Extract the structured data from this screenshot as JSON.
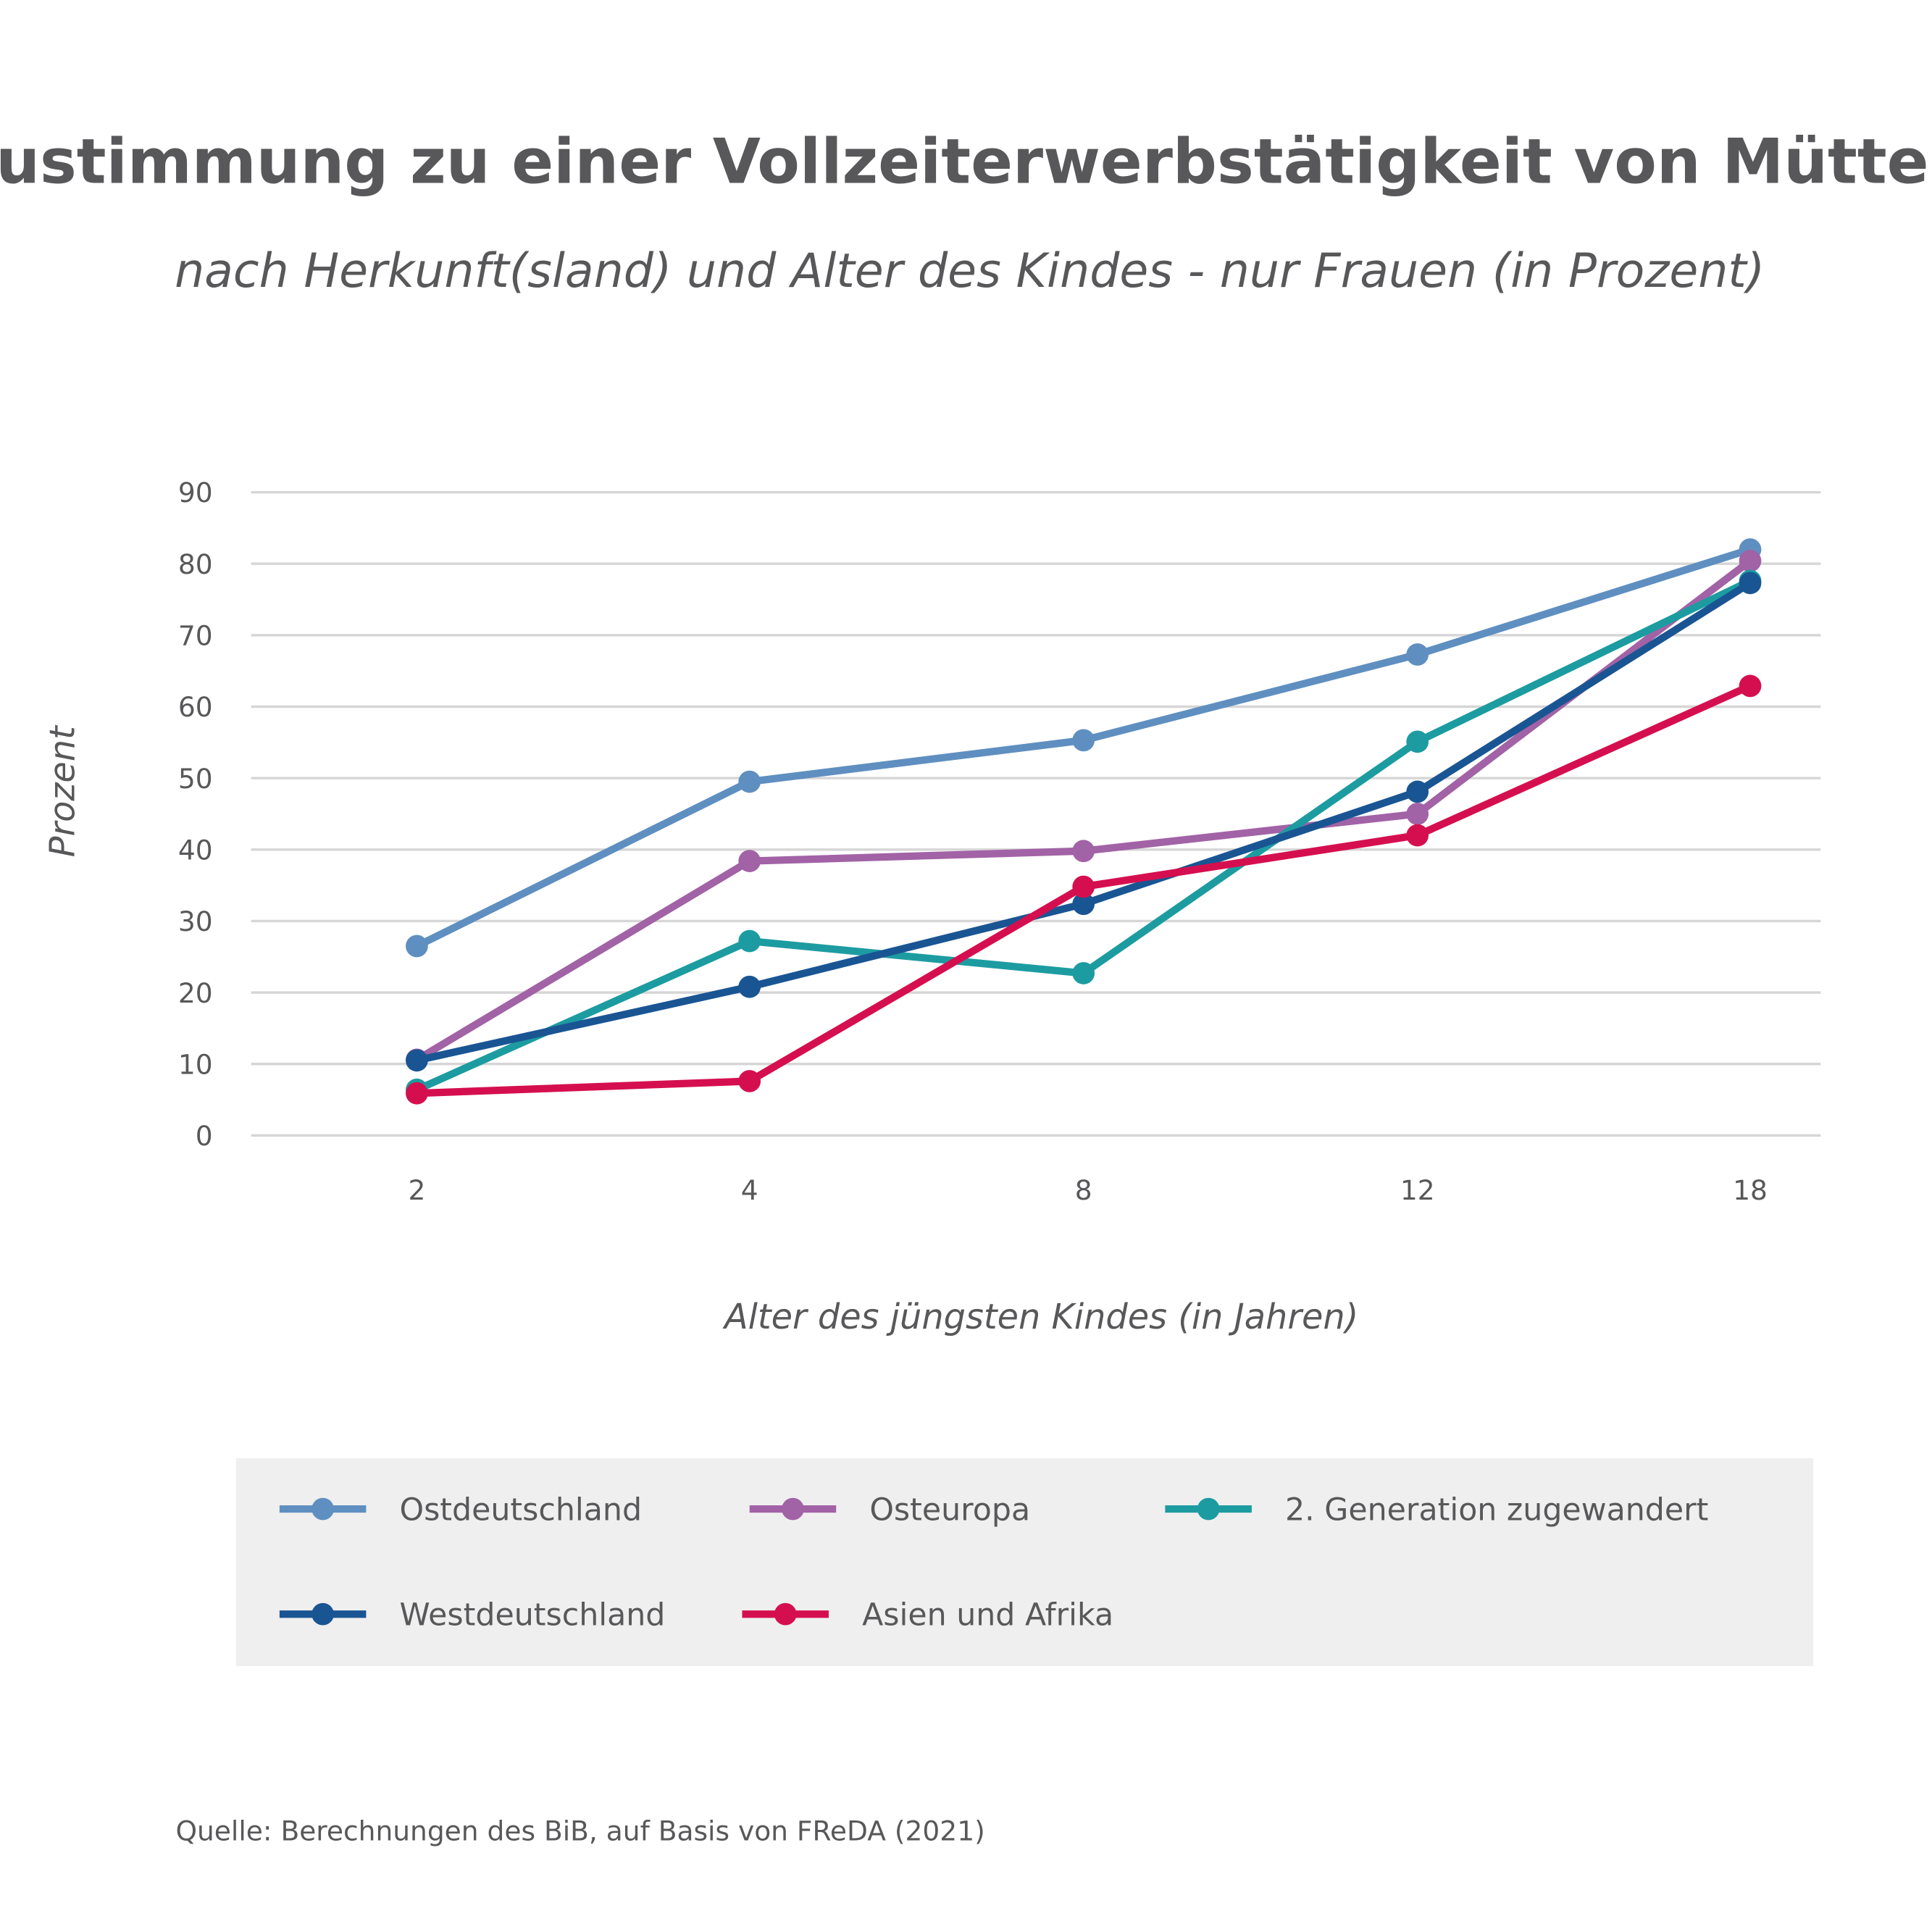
{
  "chart_data": {
    "type": "line",
    "title": "Zustimmung zu einer Vollzeiterwerbstätigkeit von Müttern",
    "subtitle": "nach Herkunft(sland) und Alter des Kindes - nur Frauen (in Prozent)",
    "xlabel": "Alter des jüngsten Kindes (in Jahren)",
    "ylabel": "Prozent",
    "categories": [
      "2",
      "4",
      "8",
      "12",
      "18"
    ],
    "ylim": [
      0,
      90
    ],
    "yticks": [
      "0",
      "10",
      "20",
      "30",
      "40",
      "50",
      "60",
      "70",
      "80",
      "90"
    ],
    "grid": true,
    "legend_placement": "bottom",
    "series": [
      {
        "name": "Ostdeutschland",
        "color": "#5f8fc0",
        "values": [
          26.5,
          49.5,
          55.3,
          67.3,
          82.0
        ]
      },
      {
        "name": "Osteuropa",
        "color": "#a262a6",
        "values": [
          10.6,
          38.4,
          39.8,
          45.0,
          80.4
        ]
      },
      {
        "name": "2. Generation zugewandert",
        "color": "#1c9ca1",
        "values": [
          6.4,
          27.2,
          22.7,
          55.1,
          77.6
        ]
      },
      {
        "name": "Westdeutschland",
        "color": "#1a5593",
        "values": [
          10.5,
          20.8,
          32.4,
          48.1,
          77.3
        ]
      },
      {
        "name": "Asien und Afrika",
        "color": "#d50f4f",
        "values": [
          5.9,
          7.6,
          34.8,
          42.0,
          62.9
        ]
      }
    ],
    "source": "Quelle: Berechnungen des BiB, auf Basis von FReDA (2021)"
  }
}
